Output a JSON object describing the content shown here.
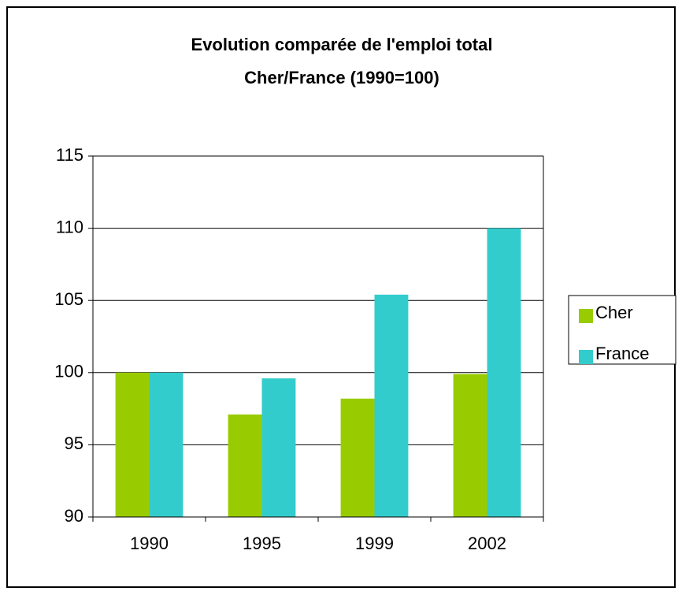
{
  "chart_data": {
    "type": "bar",
    "title": "Evolution comparée de l'emploi total",
    "subtitle": "Cher/France (1990=100)",
    "categories": [
      "1990",
      "1995",
      "1999",
      "2002"
    ],
    "series": [
      {
        "name": "Cher",
        "color": "#99cc00",
        "values": [
          100,
          97.1,
          98.2,
          99.9
        ]
      },
      {
        "name": "France",
        "color": "#33cccc",
        "values": [
          100,
          99.6,
          105.4,
          110
        ]
      }
    ],
    "ylim": [
      90,
      115
    ],
    "yticks": [
      90,
      95,
      100,
      105,
      110,
      115
    ],
    "grid": true,
    "legend": "right"
  }
}
